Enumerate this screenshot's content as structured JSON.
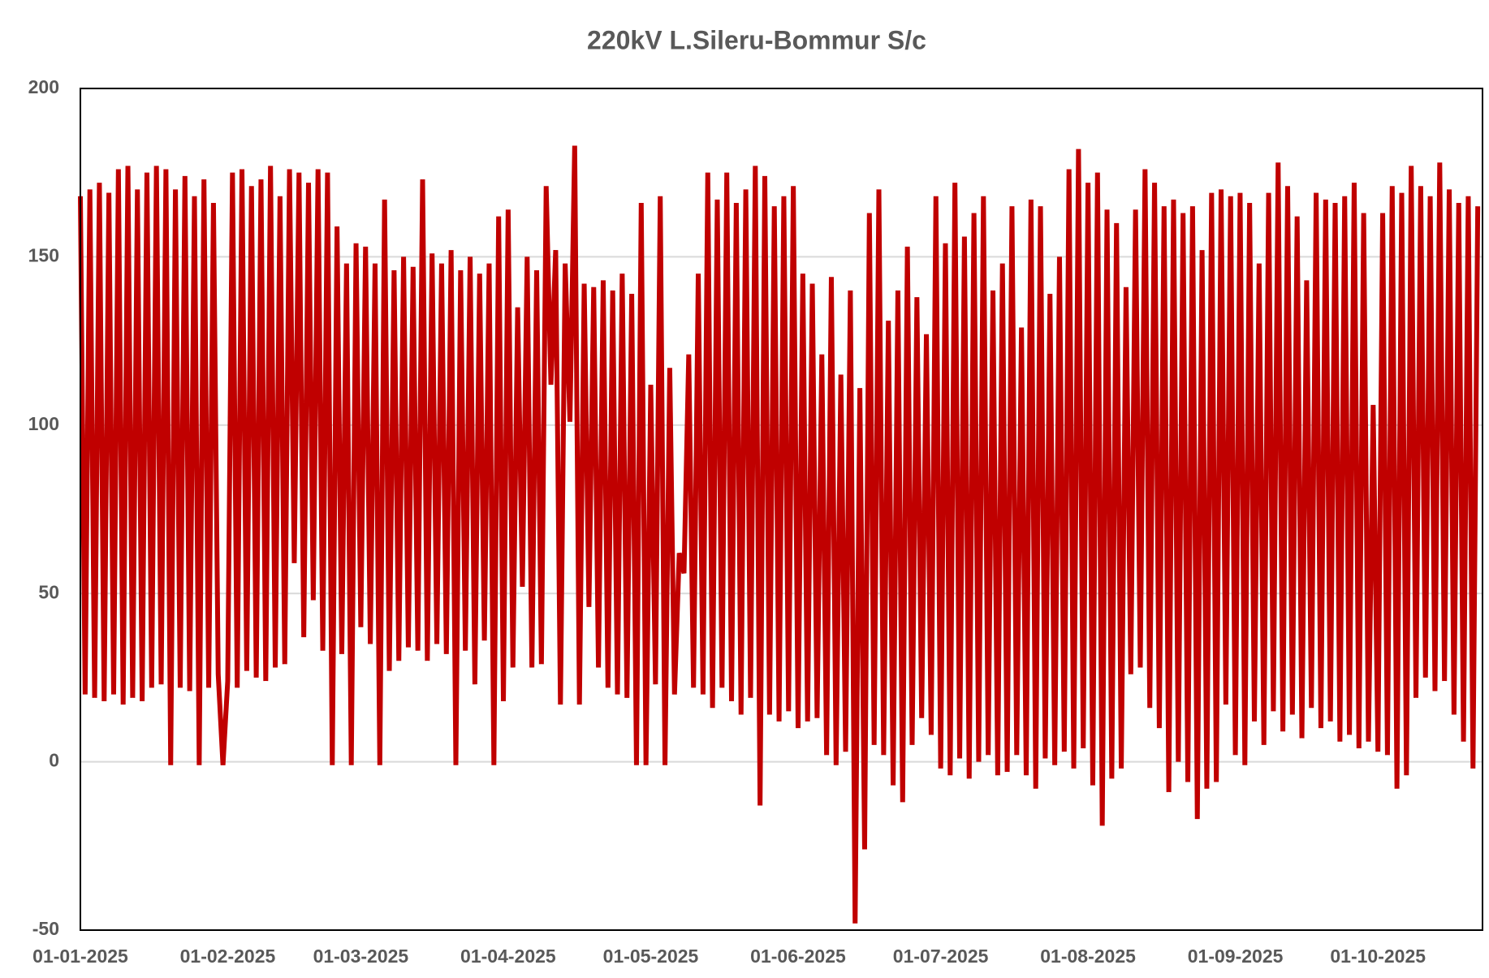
{
  "chart_data": {
    "type": "line",
    "title": "220kV L.Sileru-Bommur S/c",
    "color": "#c00000",
    "grid": true,
    "ylim": [
      -50,
      200
    ],
    "yticks": [
      -50,
      0,
      50,
      100,
      150,
      200
    ],
    "xlim": [
      "01-01-2025",
      "23-10-2025"
    ],
    "xticks": [
      "01-01-2025",
      "01-02-2025",
      "01-03-2025",
      "01-04-2025",
      "01-05-2025",
      "01-06-2025",
      "01-07-2025",
      "01-08-2025",
      "01-09-2025",
      "01-10-2025"
    ],
    "x": [
      "01-01-2025",
      "02-01-2025",
      "03-01-2025",
      "04-01-2025",
      "05-01-2025",
      "06-01-2025",
      "07-01-2025",
      "08-01-2025",
      "09-01-2025",
      "10-01-2025",
      "11-01-2025",
      "12-01-2025",
      "13-01-2025",
      "14-01-2025",
      "15-01-2025",
      "16-01-2025",
      "17-01-2025",
      "18-01-2025",
      "19-01-2025",
      "20-01-2025",
      "21-01-2025",
      "22-01-2025",
      "23-01-2025",
      "24-01-2025",
      "25-01-2025",
      "26-01-2025",
      "27-01-2025",
      "28-01-2025",
      "29-01-2025",
      "30-01-2025",
      "31-01-2025",
      "01-02-2025",
      "02-02-2025",
      "03-02-2025",
      "04-02-2025",
      "05-02-2025",
      "06-02-2025",
      "07-02-2025",
      "08-02-2025",
      "09-02-2025",
      "10-02-2025",
      "11-02-2025",
      "12-02-2025",
      "13-02-2025",
      "14-02-2025",
      "15-02-2025",
      "16-02-2025",
      "17-02-2025",
      "18-02-2025",
      "19-02-2025",
      "20-02-2025",
      "21-02-2025",
      "22-02-2025",
      "23-02-2025",
      "24-02-2025",
      "25-02-2025",
      "26-02-2025",
      "27-02-2025",
      "28-02-2025",
      "01-03-2025",
      "02-03-2025",
      "03-03-2025",
      "04-03-2025",
      "05-03-2025",
      "06-03-2025",
      "07-03-2025",
      "08-03-2025",
      "09-03-2025",
      "10-03-2025",
      "11-03-2025",
      "12-03-2025",
      "13-03-2025",
      "14-03-2025",
      "15-03-2025",
      "16-03-2025",
      "17-03-2025",
      "18-03-2025",
      "19-03-2025",
      "20-03-2025",
      "21-03-2025",
      "22-03-2025",
      "23-03-2025",
      "24-03-2025",
      "25-03-2025",
      "26-03-2025",
      "27-03-2025",
      "28-03-2025",
      "29-03-2025",
      "30-03-2025",
      "31-03-2025",
      "01-04-2025",
      "02-04-2025",
      "03-04-2025",
      "04-04-2025",
      "05-04-2025",
      "06-04-2025",
      "07-04-2025",
      "08-04-2025",
      "09-04-2025",
      "10-04-2025",
      "11-04-2025",
      "12-04-2025",
      "13-04-2025",
      "14-04-2025",
      "15-04-2025",
      "16-04-2025",
      "17-04-2025",
      "18-04-2025",
      "19-04-2025",
      "20-04-2025",
      "21-04-2025",
      "22-04-2025",
      "23-04-2025",
      "24-04-2025",
      "25-04-2025",
      "26-04-2025",
      "27-04-2025",
      "28-04-2025",
      "29-04-2025",
      "30-04-2025",
      "01-05-2025",
      "02-05-2025",
      "03-05-2025",
      "04-05-2025",
      "05-05-2025",
      "06-05-2025",
      "07-05-2025",
      "08-05-2025",
      "09-05-2025",
      "10-05-2025",
      "11-05-2025",
      "12-05-2025",
      "13-05-2025",
      "14-05-2025",
      "15-05-2025",
      "16-05-2025",
      "17-05-2025",
      "18-05-2025",
      "19-05-2025",
      "20-05-2025",
      "21-05-2025",
      "22-05-2025",
      "23-05-2025",
      "24-05-2025",
      "25-05-2025",
      "26-05-2025",
      "27-05-2025",
      "28-05-2025",
      "29-05-2025",
      "30-05-2025",
      "31-05-2025",
      "01-06-2025",
      "02-06-2025",
      "03-06-2025",
      "04-06-2025",
      "05-06-2025",
      "06-06-2025",
      "07-06-2025",
      "08-06-2025",
      "09-06-2025",
      "10-06-2025",
      "11-06-2025",
      "12-06-2025",
      "13-06-2025",
      "14-06-2025",
      "15-06-2025",
      "16-06-2025",
      "17-06-2025",
      "18-06-2025",
      "19-06-2025",
      "20-06-2025",
      "21-06-2025",
      "22-06-2025",
      "23-06-2025",
      "24-06-2025",
      "25-06-2025",
      "26-06-2025",
      "27-06-2025",
      "28-06-2025",
      "29-06-2025",
      "30-06-2025",
      "01-07-2025",
      "02-07-2025",
      "03-07-2025",
      "04-07-2025",
      "05-07-2025",
      "06-07-2025",
      "07-07-2025",
      "08-07-2025",
      "09-07-2025",
      "10-07-2025",
      "11-07-2025",
      "12-07-2025",
      "13-07-2025",
      "14-07-2025",
      "15-07-2025",
      "16-07-2025",
      "17-07-2025",
      "18-07-2025",
      "19-07-2025",
      "20-07-2025",
      "21-07-2025",
      "22-07-2025",
      "23-07-2025",
      "24-07-2025",
      "25-07-2025",
      "26-07-2025",
      "27-07-2025",
      "28-07-2025",
      "29-07-2025",
      "30-07-2025",
      "31-07-2025",
      "01-08-2025",
      "02-08-2025",
      "03-08-2025",
      "04-08-2025",
      "05-08-2025",
      "06-08-2025",
      "07-08-2025",
      "08-08-2025",
      "09-08-2025",
      "10-08-2025",
      "11-08-2025",
      "12-08-2025",
      "13-08-2025",
      "14-08-2025",
      "15-08-2025",
      "16-08-2025",
      "17-08-2025",
      "18-08-2025",
      "19-08-2025",
      "20-08-2025",
      "21-08-2025",
      "22-08-2025",
      "23-08-2025",
      "24-08-2025",
      "25-08-2025",
      "26-08-2025",
      "27-08-2025",
      "28-08-2025",
      "29-08-2025",
      "30-08-2025",
      "31-08-2025",
      "01-09-2025",
      "02-09-2025",
      "03-09-2025",
      "04-09-2025",
      "05-09-2025",
      "06-09-2025",
      "07-09-2025",
      "08-09-2025",
      "09-09-2025",
      "10-09-2025",
      "11-09-2025",
      "12-09-2025",
      "13-09-2025",
      "14-09-2025",
      "15-09-2025",
      "16-09-2025",
      "17-09-2025",
      "18-09-2025",
      "19-09-2025",
      "20-09-2025",
      "21-09-2025",
      "22-09-2025",
      "23-09-2025",
      "24-09-2025",
      "25-09-2025",
      "26-09-2025",
      "27-09-2025",
      "28-09-2025",
      "29-09-2025",
      "30-09-2025",
      "01-10-2025",
      "02-10-2025",
      "03-10-2025",
      "04-10-2025",
      "05-10-2025",
      "06-10-2025",
      "07-10-2025",
      "08-10-2025",
      "09-10-2025",
      "10-10-2025",
      "11-10-2025",
      "12-10-2025",
      "13-10-2025",
      "14-10-2025",
      "15-10-2025",
      "16-10-2025",
      "17-10-2025",
      "18-10-2025",
      "19-10-2025",
      "20-10-2025",
      "21-10-2025",
      "22-10-2025"
    ],
    "values": [
      168,
      20,
      170,
      19,
      172,
      18,
      169,
      20,
      176,
      17,
      177,
      19,
      170,
      18,
      175,
      22,
      177,
      23,
      176,
      -1,
      170,
      22,
      174,
      21,
      168,
      -1,
      173,
      22,
      166,
      26,
      -1,
      24,
      175,
      22,
      176,
      27,
      171,
      25,
      173,
      24,
      177,
      28,
      168,
      29,
      176,
      59,
      175,
      37,
      172,
      48,
      176,
      33,
      175,
      -1,
      159,
      32,
      148,
      -1,
      154,
      40,
      153,
      35,
      148,
      -1,
      167,
      27,
      146,
      30,
      150,
      34,
      147,
      33,
      173,
      30,
      151,
      35,
      148,
      32,
      152,
      -1,
      146,
      33,
      150,
      23,
      145,
      36,
      148,
      -1,
      162,
      18,
      164,
      28,
      135,
      52,
      150,
      28,
      146,
      29,
      171,
      112,
      152,
      17,
      148,
      101,
      183,
      17,
      142,
      46,
      141,
      28,
      143,
      22,
      140,
      20,
      145,
      19,
      139,
      -1,
      166,
      -1,
      112,
      23,
      168,
      -1,
      117,
      20,
      62,
      56,
      121,
      22,
      145,
      20,
      175,
      16,
      167,
      22,
      175,
      18,
      166,
      14,
      170,
      19,
      177,
      -13,
      174,
      14,
      165,
      12,
      168,
      15,
      171,
      10,
      145,
      12,
      142,
      13,
      121,
      2,
      144,
      -1,
      115,
      3,
      140,
      -48,
      111,
      -26,
      163,
      5,
      170,
      2,
      131,
      -7,
      140,
      -12,
      153,
      5,
      138,
      13,
      127,
      8,
      168,
      -2,
      154,
      -4,
      172,
      1,
      156,
      -5,
      163,
      0,
      168,
      2,
      140,
      -4,
      148,
      -3,
      165,
      2,
      129,
      -4,
      167,
      -8,
      165,
      1,
      139,
      -1,
      150,
      3,
      176,
      -2,
      182,
      4,
      172,
      -7,
      175,
      -19,
      164,
      -5,
      160,
      -2,
      141,
      26,
      164,
      28,
      176,
      16,
      172,
      10,
      165,
      -9,
      167,
      0,
      163,
      -6,
      165,
      -17,
      152,
      -8,
      169,
      -6,
      170,
      17,
      168,
      2,
      169,
      -1,
      166,
      12,
      148,
      5,
      169,
      15,
      178,
      9,
      171,
      14,
      162,
      7,
      143,
      16,
      169,
      10,
      167,
      12,
      166,
      6,
      168,
      8,
      172,
      4,
      163,
      6,
      106,
      3,
      163,
      2,
      171,
      -8,
      169,
      -4,
      177,
      19,
      171,
      25,
      168,
      21,
      178,
      24,
      170,
      14,
      166,
      6,
      168,
      -2,
      165
    ]
  }
}
